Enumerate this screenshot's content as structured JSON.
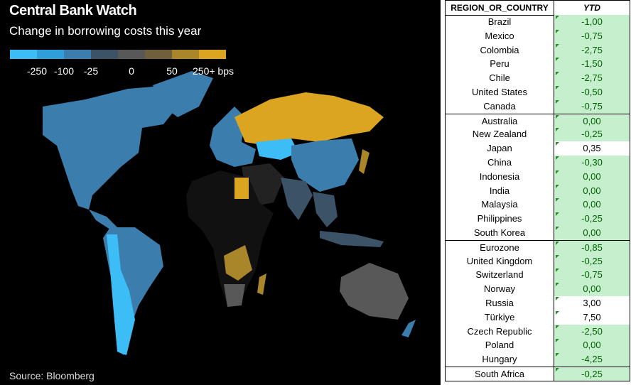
{
  "header": {
    "title": "Central Bank Watch",
    "subtitle": "Change in borrowing costs this year"
  },
  "legend": {
    "labels": [
      "-250",
      "-100",
      "-25",
      "0",
      "50",
      "250+ bps"
    ],
    "colors": [
      "#3cbdf5",
      "#2f9fdb",
      "#3b7ead",
      "#3c5266",
      "#585858",
      "#6f5f3a",
      "#a98629",
      "#dba521"
    ]
  },
  "source": "Source: Bloomberg",
  "table": {
    "columns": [
      "REGION_OR_COUNTRY",
      "YTD"
    ],
    "groups": [
      [
        [
          "Brazil",
          "-1,00"
        ],
        [
          "Mexico",
          "-0,75"
        ],
        [
          "Colombia",
          "-2,75"
        ],
        [
          "Peru",
          "-1,50"
        ],
        [
          "Chile",
          "-2,75"
        ],
        [
          "United States",
          "-0,50"
        ],
        [
          "Canada",
          "-0,75"
        ]
      ],
      [
        [
          "Australia",
          "0,00"
        ],
        [
          "New Zealand",
          "-0,25"
        ],
        [
          "Japan",
          "0,35"
        ],
        [
          "China",
          "-0,30"
        ],
        [
          "Indonesia",
          "0,00"
        ],
        [
          "India",
          "0,00"
        ],
        [
          "Malaysia",
          "0,00"
        ],
        [
          "Philippines",
          "-0,25"
        ],
        [
          "South Korea",
          "0,00"
        ]
      ],
      [
        [
          "Eurozone",
          "-0,85"
        ],
        [
          "United Kingdom",
          "-0,25"
        ],
        [
          "Switzerland",
          "-0,75"
        ],
        [
          "Norway",
          "0,00"
        ],
        [
          "Russia",
          "3,00"
        ],
        [
          "Türkiye",
          "7,50"
        ],
        [
          "Czech Republic",
          "-2,50"
        ],
        [
          "Poland",
          "0,00"
        ],
        [
          "Hungary",
          "-4,25"
        ]
      ],
      [
        [
          "South Africa",
          "-0,25"
        ]
      ]
    ]
  }
}
